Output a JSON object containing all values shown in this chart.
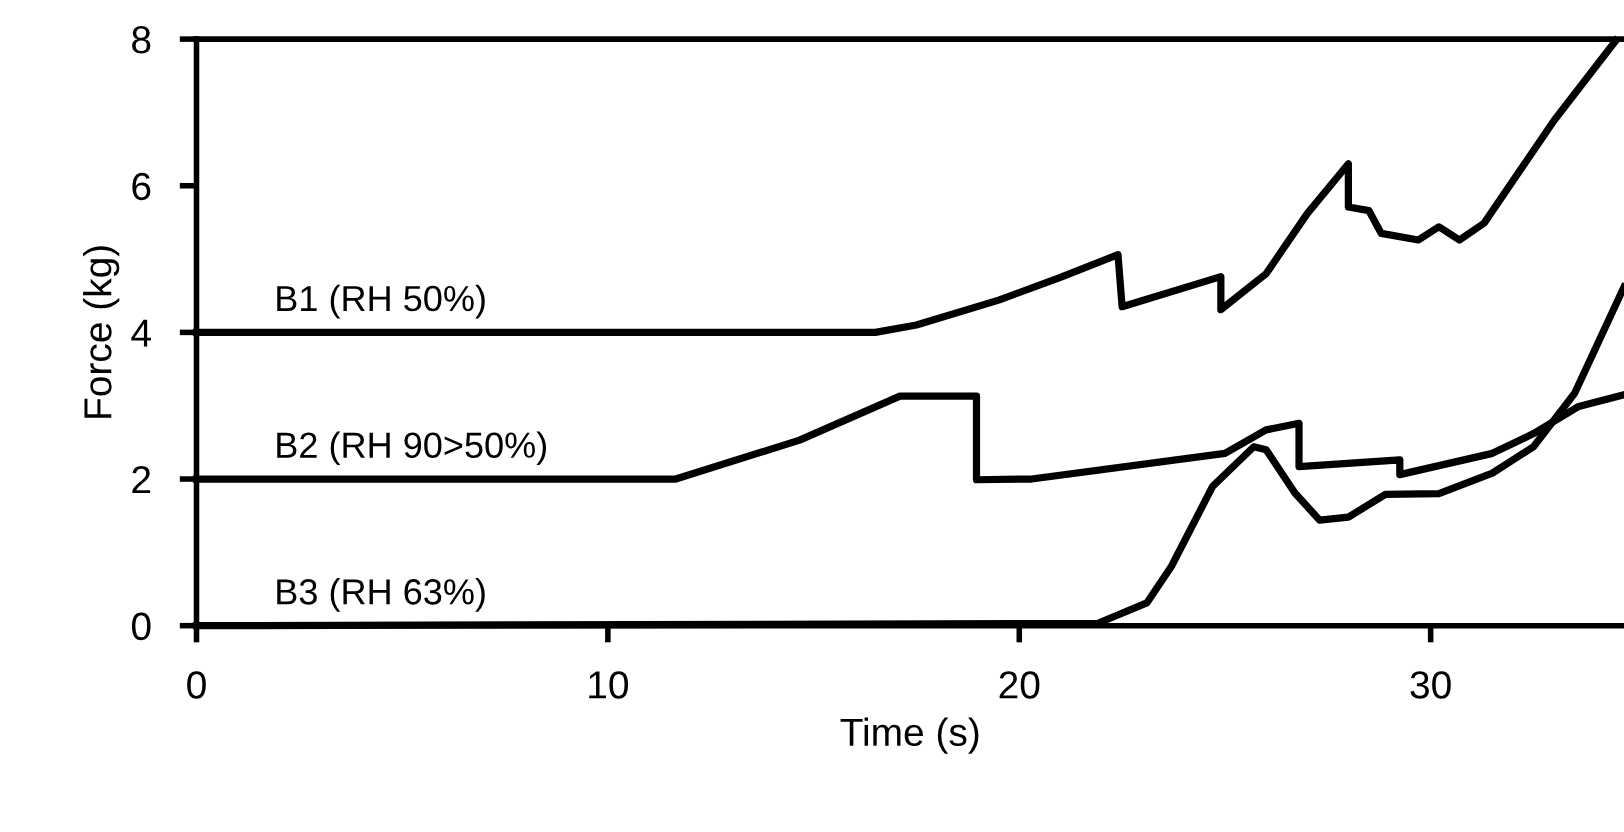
{
  "chart_data": {
    "type": "line",
    "xlabel": "Time (s)",
    "ylabel": "Force (kg)",
    "xlim": [
      0,
      34.7
    ],
    "ylim": [
      0,
      8
    ],
    "xticks": [
      0,
      10,
      20,
      30
    ],
    "yticks": [
      0,
      2,
      4,
      6,
      8
    ],
    "grid": false,
    "legend": false,
    "marker": "none",
    "line_style": "solid",
    "series": [
      {
        "name": "B1 (RH 50%)",
        "color": "#000000",
        "x": [
          0,
          16.5,
          17.5,
          19.5,
          21,
          22.4,
          22.5,
          24.9,
          24.9,
          26.0,
          27.0,
          28.0,
          28.0,
          28.5,
          28.8,
          29.7,
          30.2,
          30.7,
          31.3,
          33.0,
          34.5
        ],
        "values": [
          4.0,
          4.0,
          4.1,
          4.44,
          4.75,
          5.06,
          4.35,
          4.76,
          4.31,
          4.8,
          5.62,
          6.3,
          5.71,
          5.66,
          5.35,
          5.26,
          5.44,
          5.26,
          5.49,
          6.89,
          7.98
        ]
      },
      {
        "name": "B2 (RH 90>50%)",
        "color": "#000000",
        "x": [
          0,
          11.65,
          14.66,
          17.1,
          18.96,
          18.96,
          20.3,
          25.0,
          26.0,
          26.8,
          26.8,
          29.25,
          29.25,
          31.5,
          32.5,
          33.6,
          34.7
        ],
        "values": [
          2.0,
          2.0,
          2.53,
          3.13,
          3.13,
          1.99,
          2.0,
          2.35,
          2.67,
          2.76,
          2.17,
          2.26,
          2.06,
          2.35,
          2.62,
          2.99,
          3.15
        ]
      },
      {
        "name": "B3 (RH 63%)",
        "color": "#000000",
        "x": [
          0,
          21.9,
          23.1,
          23.7,
          24.7,
          25.7,
          26.0,
          26.7,
          27.3,
          28.0,
          28.9,
          30.2,
          31.5,
          32.5,
          33.5,
          34.7
        ],
        "values": [
          0,
          0.03,
          0.31,
          0.81,
          1.9,
          2.44,
          2.4,
          1.81,
          1.44,
          1.48,
          1.79,
          1.8,
          2.08,
          2.44,
          3.17,
          4.62
        ]
      }
    ]
  }
}
